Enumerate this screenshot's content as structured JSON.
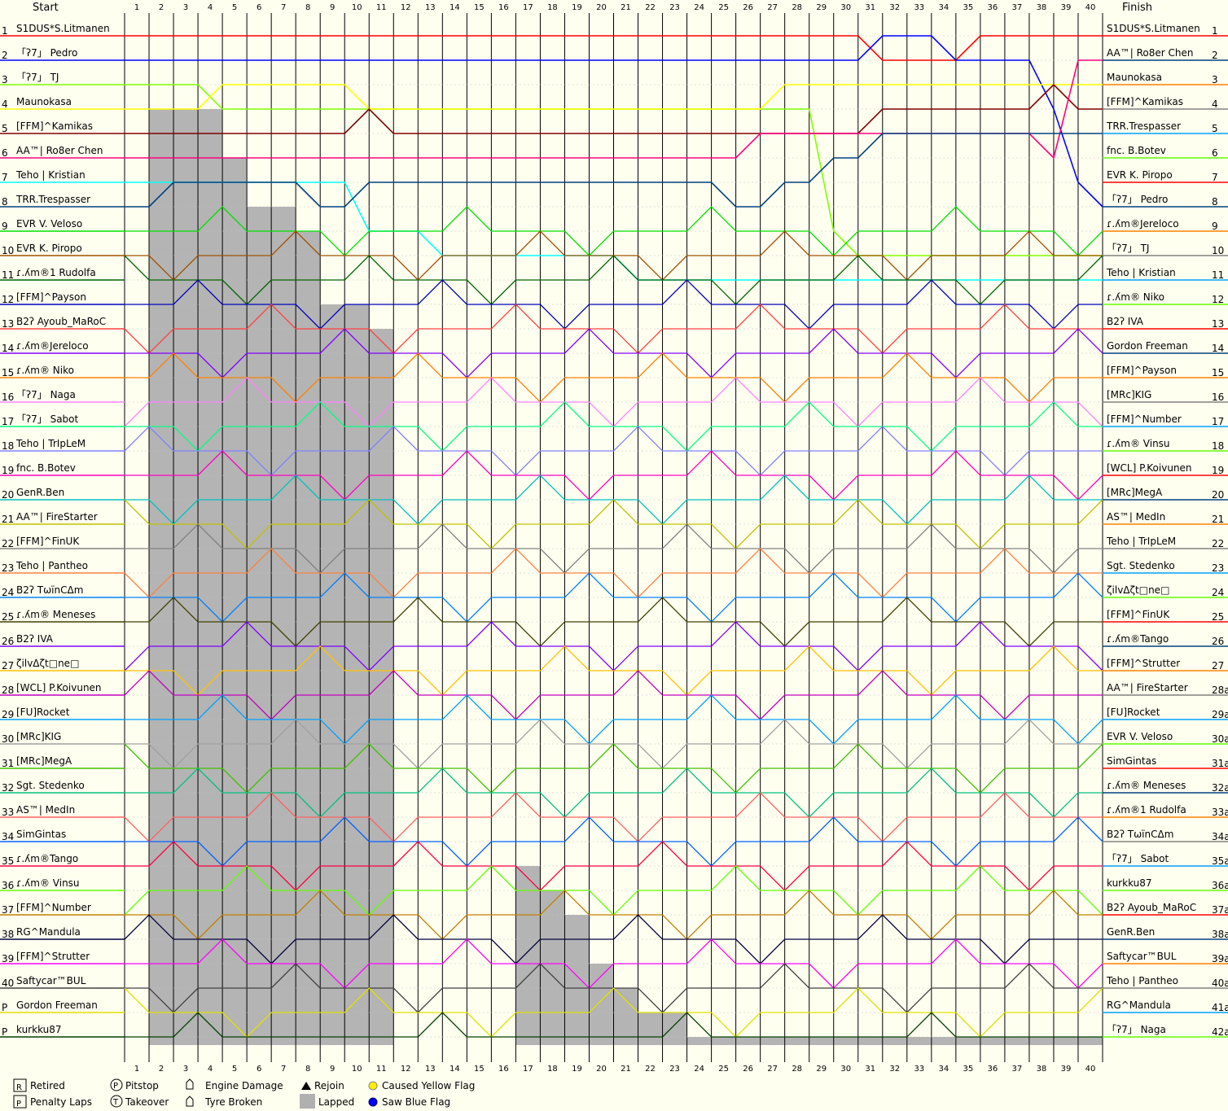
{
  "chart_data": {
    "type": "line",
    "header_start": "Start",
    "header_finish": "Finish",
    "laps": 40,
    "lap_labels": [
      "1",
      "2",
      "3",
      "4",
      "5",
      "6",
      "7",
      "8",
      "9",
      "10",
      "11",
      "12",
      "13",
      "14",
      "15",
      "16",
      "17",
      "18",
      "19",
      "20",
      "21",
      "22",
      "23",
      "24",
      "25",
      "26",
      "27",
      "28",
      "29",
      "30",
      "31",
      "32",
      "33",
      "34",
      "35",
      "36",
      "37",
      "38",
      "39",
      "40"
    ],
    "start_positions": [
      "1",
      "2",
      "3",
      "4",
      "5",
      "6",
      "7",
      "8",
      "9",
      "10",
      "11",
      "12",
      "13",
      "14",
      "15",
      "16",
      "17",
      "18",
      "19",
      "20",
      "21",
      "22",
      "23",
      "24",
      "25",
      "26",
      "27",
      "28",
      "29",
      "30",
      "31",
      "32",
      "33",
      "34",
      "35",
      "36",
      "37",
      "38",
      "39",
      "40",
      "P",
      "P"
    ],
    "finish_positions": [
      "1",
      "2",
      "3",
      "4",
      "5",
      "6",
      "7",
      "8",
      "9",
      "10",
      "11",
      "12",
      "13",
      "14",
      "15",
      "16",
      "17",
      "18",
      "19",
      "20",
      "21",
      "22",
      "23",
      "24",
      "25",
      "26",
      "27",
      "28a",
      "29a",
      "30a",
      "31a",
      "32a",
      "33a",
      "34a",
      "35a",
      "36a",
      "37a",
      "38a",
      "39a",
      "40a",
      "41a",
      "42a"
    ],
    "start_drivers": [
      "S1DUS*S.Litmanen",
      "「ʔ7」 Pedro",
      "「ʔ7」 TJ",
      "Maunokasa",
      "[FFM]^Kamikas",
      "AA™| Ro8er Chen",
      "Teho | Kristian",
      "TRR.Trespasser",
      "EVR V. Veloso",
      "EVR K. Piropo",
      "ɾ.ʎm®1 Rudolfa",
      "[FFM]^Payson",
      "B2ʔ Ayoub_MaRoC",
      "ɾ.ʎm®Jereloco",
      "ɾ.ʎm® Niko",
      "「ʔ7」 Naga",
      "「ʔ7」 Sabot",
      "Teho | TrIpLeM",
      "fnc. B.Botev",
      "GenR.Ben",
      "AA™| FireStarter",
      "[FFM]^FinUK",
      "Teho | Pantheo",
      "B2ʔ TѡїnCΔm",
      "ɾ.ʎm® Meneses",
      "B2ʔ IVA",
      "ζilvΔζt□ne□",
      "[WCL] P.Koivunen",
      "[FU]Rocket",
      "[MRc]KIG",
      "[MRc]MegA",
      "Sgt. Stedenko",
      "AS™| MedIn",
      "SimGintas",
      "ɾ.ʎm®Tango",
      "ɾ.ʎm® Vinsu",
      "[FFM]^Number",
      "RG^Mandula",
      "[FFM]^Strutter",
      "Saftycar™BUL",
      "Gordon Freeman",
      "kurkku87"
    ],
    "finish_drivers": [
      "S1DUS*S.Litmanen",
      "AA™| Ro8er Chen",
      "Maunokasa",
      "[FFM]^Kamikas",
      "TRR.Trespasser",
      "fnc. B.Botev",
      "EVR K. Piropo",
      "「ʔ7」 Pedro",
      "ɾ.ʎm®Jereloco",
      "「ʔ7」 TJ",
      "Teho | Kristian",
      "ɾ.ʎm® Niko",
      "B2ʔ IVA",
      "Gordon Freeman",
      "[FFM]^Payson",
      "[MRc]KIG",
      "[FFM]^Number",
      "ɾ.ʎm® Vinsu",
      "[WCL] P.Koivunen",
      "[MRc]MegA",
      "AS™| MedIn",
      "Teho | TrIpLeM",
      "Sgt. Stedenko",
      "ζilvΔζt□ne□",
      "[FFM]^FinUK",
      "ɾ.ʎm®Tango",
      "[FFM]^Strutter",
      "AA™| FireStarter",
      "[FU]Rocket",
      "EVR V. Veloso",
      "SimGintas",
      "ɾ.ʎm® Meneses",
      "ɾ.ʎm®1 Rudolfa",
      "B2ʔ TѡїnCΔm",
      "「ʔ7」 Sabot",
      "kurkku87",
      "B2ʔ Ayoub_MaRoC",
      "GenR.Ben",
      "Saftycar™BUL",
      "Teho | Pantheo",
      "RG^Mandula",
      "「ʔ7」 Naga"
    ],
    "series_colors": [
      "#ff0000",
      "#0000ff",
      "#80ff00",
      "#ffff00",
      "#800000",
      "#ff0080",
      "#00ffff",
      "#004080",
      "#00e000",
      "#a05000",
      "#006400",
      "#0000c0",
      "#ff4040",
      "#8000ff",
      "#ff8000",
      "#ff80ff",
      "#00ff80",
      "#8080ff",
      "#ff00c0",
      "#00c0c0",
      "#c0c000",
      "#808080",
      "#ff8040",
      "#0080ff",
      "#404000",
      "#8000ff",
      "#ffc000",
      "#c000c0",
      "#00a0ff",
      "#a0a0a0",
      "#40c000",
      "#00c080",
      "#ff6060",
      "#0060ff",
      "#ff0040",
      "#60ff00",
      "#c08000",
      "#000040",
      "#ff00ff",
      "#404040",
      "#e0e000",
      "#004000"
    ],
    "series_positions": [
      [
        1,
        1,
        1,
        1,
        1,
        1,
        1,
        1,
        1,
        1,
        1,
        1,
        1,
        1,
        1,
        1,
        1,
        1,
        1,
        1,
        1,
        1,
        1,
        1,
        1,
        1,
        1,
        1,
        1,
        1,
        1,
        2,
        2,
        2,
        2,
        1,
        1,
        1,
        1,
        1,
        1
      ],
      [
        2,
        2,
        2,
        2,
        2,
        2,
        2,
        2,
        2,
        2,
        2,
        2,
        2,
        2,
        2,
        2,
        2,
        2,
        2,
        2,
        2,
        2,
        2,
        2,
        2,
        2,
        2,
        2,
        2,
        2,
        2,
        1,
        1,
        1,
        2,
        2,
        2,
        2,
        4,
        7,
        8
      ],
      [
        3,
        3,
        3,
        3,
        4,
        4,
        4,
        4,
        4,
        4,
        4,
        4,
        4,
        4,
        4,
        4,
        4,
        4,
        4,
        4,
        4,
        4,
        4,
        4,
        4,
        4,
        4,
        4,
        4,
        9,
        10,
        10,
        10,
        10,
        10,
        10,
        10,
        10,
        10,
        10,
        10
      ],
      [
        4,
        4,
        4,
        4,
        3,
        3,
        3,
        3,
        3,
        3,
        4,
        4,
        4,
        4,
        4,
        4,
        4,
        4,
        4,
        4,
        4,
        4,
        4,
        4,
        4,
        4,
        4,
        3,
        3,
        3,
        3,
        3,
        3,
        3,
        3,
        3,
        3,
        3,
        3,
        3,
        3
      ],
      [
        5,
        5,
        5,
        5,
        5,
        5,
        5,
        5,
        5,
        5,
        4,
        5,
        5,
        5,
        5,
        5,
        5,
        5,
        5,
        5,
        5,
        5,
        5,
        5,
        5,
        5,
        5,
        5,
        5,
        5,
        5,
        4,
        4,
        4,
        4,
        4,
        4,
        4,
        3,
        4,
        4
      ],
      [
        6,
        6,
        6,
        6,
        6,
        6,
        6,
        6,
        6,
        6,
        6,
        6,
        6,
        6,
        6,
        6,
        6,
        6,
        6,
        6,
        6,
        6,
        6,
        6,
        6,
        6,
        5,
        5,
        5,
        5,
        5,
        5,
        5,
        5,
        5,
        5,
        5,
        5,
        6,
        2,
        2
      ],
      [
        7,
        7,
        7,
        7,
        7,
        7,
        7,
        7,
        7,
        7,
        9,
        9,
        9,
        10,
        10,
        10,
        10,
        10,
        10,
        10,
        10,
        11,
        11,
        11,
        11,
        11,
        11,
        11,
        11,
        11,
        11,
        11,
        11,
        11,
        11,
        11,
        11,
        11,
        11,
        11,
        11
      ],
      [
        8,
        8,
        7,
        7,
        7,
        7,
        7,
        7,
        8,
        8,
        7,
        7,
        7,
        7,
        7,
        7,
        7,
        7,
        7,
        7,
        7,
        7,
        7,
        7,
        7,
        8,
        8,
        7,
        7,
        6,
        6,
        5,
        5,
        5,
        5,
        5,
        5,
        5,
        5,
        5,
        5
      ]
    ],
    "legend": [
      {
        "symbol": "R",
        "label": "Retired"
      },
      {
        "symbol": "P",
        "label": "Pitstop"
      },
      {
        "symbol": "E",
        "label": "Engine Damage"
      },
      {
        "symbol": "rejoin",
        "label": "Rejoin"
      },
      {
        "symbol": "yellow",
        "label": "Caused Yellow Flag"
      },
      {
        "symbol": "P",
        "label": "Penalty Laps"
      },
      {
        "symbol": "T",
        "label": "Takeover"
      },
      {
        "symbol": "tyre",
        "label": "Tyre Broken"
      },
      {
        "symbol": "lapped",
        "label": "Lapped"
      },
      {
        "symbol": "blue",
        "label": "Saw Blue Flag"
      }
    ],
    "lapped_depth": [
      0,
      3,
      3,
      3,
      5,
      7,
      7,
      8,
      11,
      11,
      12,
      0,
      0,
      0,
      0,
      0,
      34,
      35,
      36,
      38,
      39,
      40,
      40,
      41,
      42,
      43,
      45,
      45,
      46,
      47,
      48,
      49,
      49,
      50,
      51,
      52,
      52,
      53,
      54,
      54
    ],
    "grid": true,
    "legend_position": "bottom-left"
  }
}
